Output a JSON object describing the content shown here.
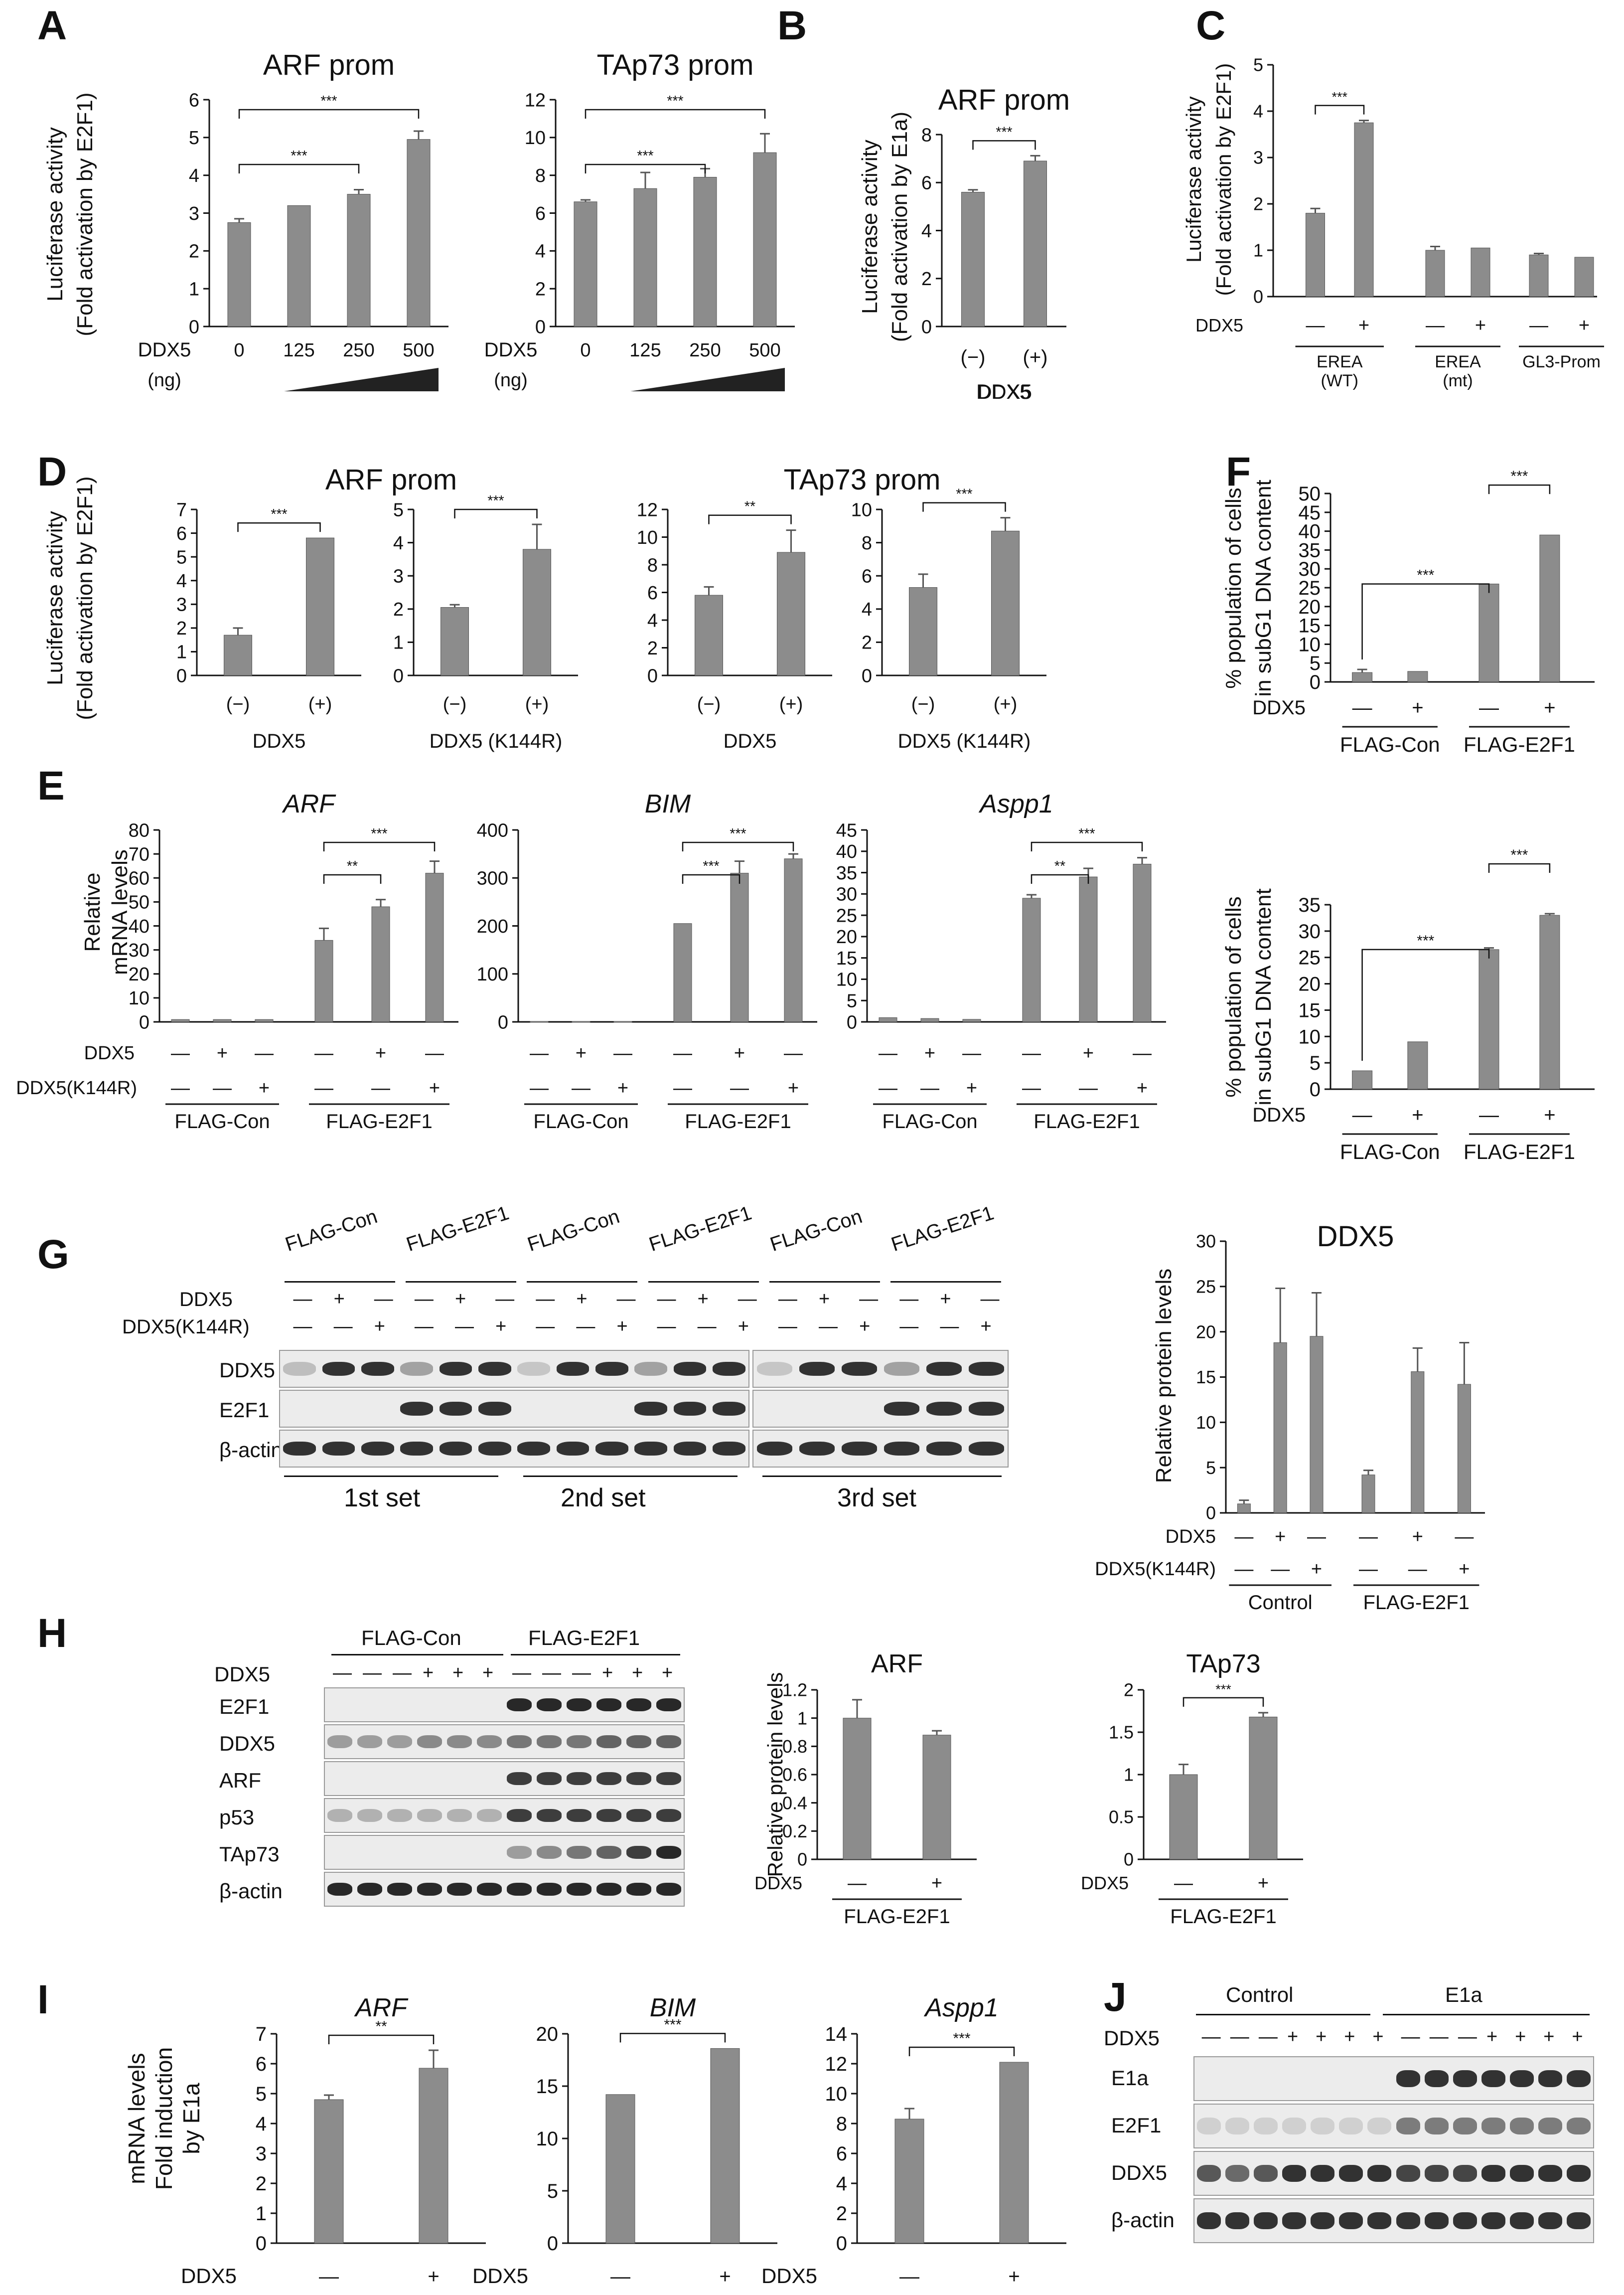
{
  "panel_letters": [
    "A",
    "B",
    "C",
    "D",
    "E",
    "F",
    "G",
    "H",
    "I",
    "J"
  ],
  "common": {
    "luc_ylabel_1": "Luciferase activity",
    "luc_ylabel_e2f1": "(Fold activation by E2F1)",
    "luc_ylabel_e1a": "(Fold activation by E1a)",
    "ddx5": "DDX5",
    "ddx5_ng": "DDX5",
    "ng": "(ng)",
    "ddx5_k144r": "DDX5(K144R)",
    "ddx5_k144r_sp": "DDX5 (K144R)",
    "minus": "—",
    "plus": "+",
    "paren_minus": "(−)",
    "paren_plus": "(+)",
    "flag_con": "FLAG-Con",
    "flag_e2f1": "FLAG-E2F1",
    "control": "Control",
    "e1a": "E1a",
    "sig3": "***",
    "sig2": "**",
    "rel_mrna_1": "Relative",
    "rel_mrna_2": "mRNA levels",
    "rel_protein": "Relative protein levels",
    "subg1_1": "% population of cells",
    "subg1_2": "in subG1 DNA content",
    "fold_e1a_1": "mRNA levels",
    "fold_e1a_2": "Fold induction",
    "fold_e1a_3": "by E1a",
    "erea_wt": "EREA",
    "erea_wt_sub": "(WT)",
    "erea_mt": "EREA",
    "erea_mt_sub": "(mt)",
    "gl3": "GL3-Prom",
    "set1": "1st set",
    "set2": "2nd set",
    "set3": "3rd set"
  },
  "blot_labels": {
    "G": [
      "DDX5",
      "E2F1",
      "β-actin"
    ],
    "H": [
      "E2F1",
      "DDX5",
      "ARF",
      "p53",
      "TAp73",
      "β-actin"
    ],
    "J": [
      "E1a",
      "E2F1",
      "DDX5",
      "β-actin"
    ]
  },
  "colors": {
    "bar": "#8c8c8c",
    "axis": "#111111"
  },
  "chart_data": [
    {
      "id": "A1",
      "type": "bar",
      "title": "ARF prom",
      "categories": [
        "0",
        "125",
        "250",
        "500"
      ],
      "values": [
        2.75,
        3.2,
        3.5,
        4.95
      ],
      "errors": [
        0.1,
        0,
        0.12,
        0.22
      ],
      "ylim": [
        0,
        6
      ],
      "yticks": [
        0,
        1,
        2,
        3,
        4,
        5,
        6
      ],
      "sig": [
        [
          "0",
          "250",
          "***"
        ],
        [
          "0",
          "500",
          "***"
        ]
      ]
    },
    {
      "id": "A2",
      "type": "bar",
      "title": "TAp73 prom",
      "categories": [
        "0",
        "125",
        "250",
        "500"
      ],
      "values": [
        6.6,
        7.3,
        7.9,
        9.2
      ],
      "errors": [
        0.1,
        0.85,
        0.45,
        1.0
      ],
      "ylim": [
        0,
        12
      ],
      "yticks": [
        0,
        2,
        4,
        6,
        8,
        10,
        12
      ],
      "sig": [
        [
          "0",
          "250",
          "***"
        ],
        [
          "0",
          "500",
          "***"
        ]
      ]
    },
    {
      "id": "B",
      "type": "bar",
      "title": "ARF prom",
      "categories": [
        "(−)",
        "(+)"
      ],
      "values": [
        5.6,
        6.9
      ],
      "errors": [
        0.1,
        0.22
      ],
      "ylim": [
        0,
        8
      ],
      "yticks": [
        0,
        2,
        4,
        6,
        8
      ],
      "xlabel": "DDX5",
      "sig": [
        [
          "(−)",
          "(+)",
          "***"
        ]
      ]
    },
    {
      "id": "C",
      "type": "bar",
      "categories": [
        "EREA(WT) −",
        "EREA(WT) +",
        "EREA(mt) −",
        "EREA(mt) +",
        "GL3-Prom −",
        "GL3-Prom +"
      ],
      "values": [
        1.8,
        3.75,
        1.0,
        1.05,
        0.9,
        0.85
      ],
      "errors": [
        0.1,
        0.05,
        0.08,
        0,
        0.03,
        0
      ],
      "ylim": [
        0,
        5
      ],
      "yticks": [
        0,
        1,
        2,
        3,
        4,
        5
      ],
      "sig": [
        [
          "EREA(WT) −",
          "EREA(WT) +",
          "***"
        ]
      ]
    },
    {
      "id": "D1",
      "type": "bar",
      "categories": [
        "(−)",
        "(+)"
      ],
      "values": [
        1.7,
        5.8
      ],
      "errors": [
        0.3,
        0
      ],
      "ylim": [
        0,
        7
      ],
      "yticks": [
        0,
        1,
        2,
        3,
        4,
        5,
        6,
        7
      ],
      "xlabel": "DDX5",
      "group_title": "ARF prom",
      "sig": [
        [
          "(−)",
          "(+)",
          "***"
        ]
      ]
    },
    {
      "id": "D2",
      "type": "bar",
      "categories": [
        "(−)",
        "(+)"
      ],
      "values": [
        2.05,
        3.8
      ],
      "errors": [
        0.08,
        0.75
      ],
      "ylim": [
        0,
        5
      ],
      "yticks": [
        0,
        1,
        2,
        3,
        4,
        5
      ],
      "xlabel": "DDX5 (K144R)",
      "sig": [
        [
          "(−)",
          "(+)",
          "***"
        ]
      ]
    },
    {
      "id": "D3",
      "type": "bar",
      "categories": [
        "(−)",
        "(+)"
      ],
      "values": [
        5.8,
        8.9
      ],
      "errors": [
        0.6,
        1.6
      ],
      "ylim": [
        0,
        12
      ],
      "yticks": [
        0,
        2,
        4,
        6,
        8,
        10,
        12
      ],
      "xlabel": "DDX5",
      "group_title": "TAp73 prom",
      "sig": [
        [
          "(−)",
          "(+)",
          "**"
        ]
      ]
    },
    {
      "id": "D4",
      "type": "bar",
      "categories": [
        "(−)",
        "(+)"
      ],
      "values": [
        5.3,
        8.7
      ],
      "errors": [
        0.8,
        0.8
      ],
      "ylim": [
        0,
        10
      ],
      "yticks": [
        0,
        2,
        4,
        6,
        8,
        10
      ],
      "xlabel": "DDX5 (K144R)",
      "sig": [
        [
          "(−)",
          "(+)",
          "***"
        ]
      ]
    },
    {
      "id": "E1",
      "type": "bar",
      "title": "ARF",
      "categories": [
        "FLAG-Con − −",
        "FLAG-Con + −",
        "FLAG-Con − +",
        "FLAG-E2F1 − −",
        "FLAG-E2F1 + −",
        "FLAG-E2F1 − +"
      ],
      "values": [
        1,
        1,
        1,
        34,
        48,
        62
      ],
      "errors": [
        0,
        0,
        0,
        5,
        3,
        5
      ],
      "ylim": [
        0,
        80
      ],
      "yticks": [
        0,
        10,
        20,
        30,
        40,
        50,
        60,
        70,
        80
      ],
      "sig": [
        [
          "FLAG-E2F1 − −",
          "FLAG-E2F1 + −",
          "**"
        ],
        [
          "FLAG-E2F1 − −",
          "FLAG-E2F1 − +",
          "***"
        ]
      ]
    },
    {
      "id": "E2",
      "type": "bar",
      "title": "BIM",
      "categories": [
        "FLAG-Con − −",
        "FLAG-Con + −",
        "FLAG-Con − +",
        "FLAG-E2F1 − −",
        "FLAG-E2F1 + −",
        "FLAG-E2F1 − +"
      ],
      "values": [
        1,
        1,
        1,
        205,
        310,
        340
      ],
      "errors": [
        0,
        0,
        0,
        0,
        25,
        10
      ],
      "ylim": [
        0,
        400
      ],
      "yticks": [
        0,
        100,
        200,
        300,
        400
      ],
      "sig": [
        [
          "FLAG-E2F1 − −",
          "FLAG-E2F1 + −",
          "***"
        ],
        [
          "FLAG-E2F1 − −",
          "FLAG-E2F1 − +",
          "***"
        ]
      ]
    },
    {
      "id": "E3",
      "type": "bar",
      "title": "Aspp1",
      "categories": [
        "FLAG-Con − −",
        "FLAG-Con + −",
        "FLAG-Con − +",
        "FLAG-E2F1 − −",
        "FLAG-E2F1 + −",
        "FLAG-E2F1 − +"
      ],
      "values": [
        1,
        0.8,
        0.6,
        29,
        34,
        37
      ],
      "errors": [
        0,
        0,
        0,
        0.8,
        2,
        1.5
      ],
      "ylim": [
        0,
        45
      ],
      "yticks": [
        0,
        5,
        10,
        15,
        20,
        25,
        30,
        35,
        40,
        45
      ],
      "sig": [
        [
          "FLAG-E2F1 − −",
          "FLAG-E2F1 + −",
          "**"
        ],
        [
          "FLAG-E2F1 − −",
          "FLAG-E2F1 − +",
          "***"
        ]
      ]
    },
    {
      "id": "F1",
      "type": "bar",
      "categories": [
        "FLAG-Con −",
        "FLAG-Con +",
        "FLAG-E2F1 −",
        "FLAG-E2F1 +"
      ],
      "values": [
        2.5,
        2.8,
        26,
        39
      ],
      "errors": [
        0.8,
        0,
        0,
        0
      ],
      "ylim": [
        0,
        50
      ],
      "yticks": [
        0,
        5,
        10,
        15,
        20,
        25,
        30,
        35,
        40,
        45,
        50
      ],
      "sig": [
        [
          "FLAG-Con −",
          "FLAG-E2F1 −",
          "***"
        ],
        [
          "FLAG-E2F1 −",
          "FLAG-E2F1 +",
          "***"
        ]
      ]
    },
    {
      "id": "F2",
      "type": "bar",
      "categories": [
        "FLAG-Con −",
        "FLAG-Con +",
        "FLAG-E2F1 −",
        "FLAG-E2F1 +"
      ],
      "values": [
        3.5,
        9,
        26.5,
        33
      ],
      "errors": [
        0,
        0,
        0.3,
        0.3
      ],
      "ylim": [
        0,
        35
      ],
      "yticks": [
        0,
        5,
        10,
        15,
        20,
        25,
        30,
        35
      ],
      "sig": [
        [
          "FLAG-Con −",
          "FLAG-E2F1 −",
          "***"
        ],
        [
          "FLAG-E2F1 −",
          "FLAG-E2F1 +",
          "***"
        ]
      ]
    },
    {
      "id": "G",
      "type": "bar",
      "title": "DDX5",
      "categories": [
        "Control − −",
        "Control + −",
        "Control − +",
        "FLAG-E2F1 − −",
        "FLAG-E2F1 + −",
        "FLAG-E2F1 − +"
      ],
      "values": [
        1,
        18.8,
        19.5,
        4.2,
        15.6,
        14.2
      ],
      "errors": [
        0.4,
        6,
        4.8,
        0.5,
        2.6,
        4.6
      ],
      "ylim": [
        0,
        30
      ],
      "yticks": [
        0,
        5,
        10,
        15,
        20,
        25,
        30
      ]
    },
    {
      "id": "H1",
      "type": "bar",
      "title": "ARF",
      "categories": [
        "−",
        "+"
      ],
      "values": [
        1.0,
        0.88
      ],
      "errors": [
        0.13,
        0.03
      ],
      "ylim": [
        0,
        1.2
      ],
      "yticks": [
        0,
        0.2,
        0.4,
        0.6,
        0.8,
        1,
        1.2
      ]
    },
    {
      "id": "H2",
      "type": "bar",
      "title": "TAp73",
      "categories": [
        "−",
        "+"
      ],
      "values": [
        1.0,
        1.68
      ],
      "errors": [
        0.12,
        0.05
      ],
      "ylim": [
        0,
        2
      ],
      "yticks": [
        0,
        0.5,
        1,
        1.5,
        2
      ],
      "sig": [
        [
          "−",
          "+",
          "***"
        ]
      ]
    },
    {
      "id": "I1",
      "type": "bar",
      "title": "ARF",
      "categories": [
        "−",
        "+"
      ],
      "values": [
        4.8,
        5.85
      ],
      "errors": [
        0.15,
        0.6
      ],
      "ylim": [
        0,
        7
      ],
      "yticks": [
        0,
        1,
        2,
        3,
        4,
        5,
        6,
        7
      ],
      "sig": [
        [
          "−",
          "+",
          "**"
        ]
      ]
    },
    {
      "id": "I2",
      "type": "bar",
      "title": "BIM",
      "categories": [
        "−",
        "+"
      ],
      "values": [
        14.2,
        18.6
      ],
      "errors": [
        0,
        0
      ],
      "ylim": [
        0,
        20
      ],
      "yticks": [
        0,
        5,
        10,
        15,
        20
      ],
      "sig": [
        [
          "−",
          "+",
          "***"
        ]
      ]
    },
    {
      "id": "I3",
      "type": "bar",
      "title": "Aspp1",
      "categories": [
        "−",
        "+"
      ],
      "values": [
        8.3,
        12.1
      ],
      "errors": [
        0.7,
        0
      ],
      "ylim": [
        0,
        14
      ],
      "yticks": [
        0,
        2,
        4,
        6,
        8,
        10,
        12,
        14
      ],
      "sig": [
        [
          "−",
          "+",
          "***"
        ]
      ]
    }
  ]
}
